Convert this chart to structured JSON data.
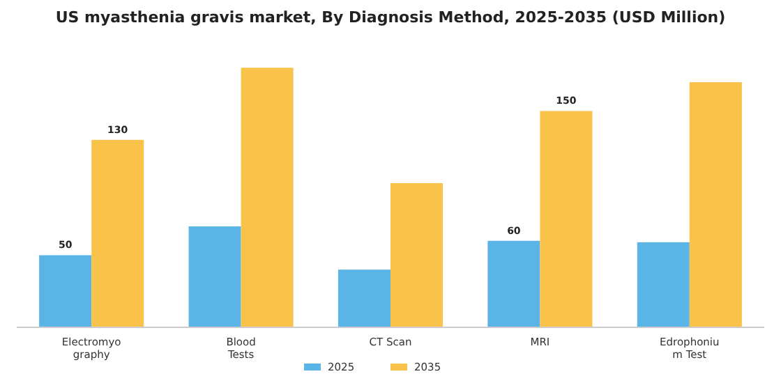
{
  "chart_data": {
    "type": "bar",
    "title": "US myasthenia gravis market, By Diagnosis Method, 2025-2035 (USD Million)",
    "categories": [
      "Electromyography",
      "Blood Tests",
      "CT Scan",
      "MRI",
      "Edrophonium Test"
    ],
    "series": [
      {
        "name": "2025",
        "color": "#5ab4e6",
        "values": [
          50,
          70,
          40,
          60,
          59
        ],
        "value_labels": [
          "50",
          null,
          null,
          "60",
          null
        ]
      },
      {
        "name": "2035",
        "color": "#f8c24b",
        "values": [
          130,
          180,
          100,
          150,
          170
        ],
        "value_labels": [
          "130",
          null,
          null,
          "150",
          null
        ]
      }
    ],
    "legend": "bottom",
    "grid": false
  }
}
